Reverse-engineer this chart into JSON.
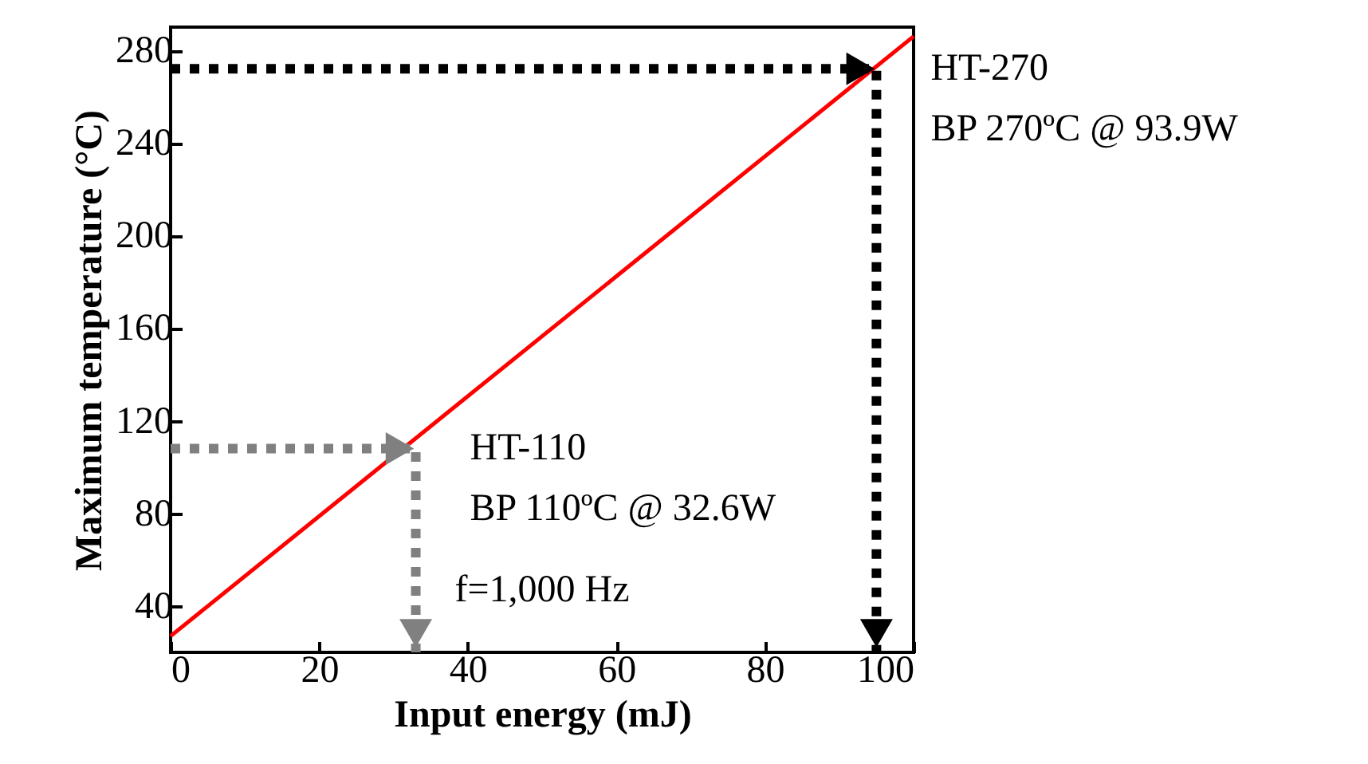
{
  "chart_data": {
    "type": "line",
    "xlabel": "Input energy (mJ)",
    "ylabel": "Maximum temperature (°C)",
    "xlim": [
      0,
      100
    ],
    "xticks": [
      0,
      20,
      40,
      60,
      80,
      100
    ],
    "ylim": [
      20,
      290
    ],
    "yticks": [
      40,
      80,
      120,
      160,
      200,
      240,
      280
    ],
    "grid": false,
    "legend": false,
    "series": [
      {
        "color": "#ff0000",
        "x": [
          0,
          100
        ],
        "values": [
          27,
          286
        ],
        "line_style": "solid"
      },
      {
        "color": "#808080",
        "x": [
          0,
          33,
          33
        ],
        "values": [
          108,
          108,
          20
        ],
        "line_style": "dotted"
      },
      {
        "color": "#000000",
        "x": [
          0,
          95,
          95
        ],
        "values": [
          272,
          272,
          20
        ],
        "line_style": "dotted"
      }
    ],
    "annotations": [
      "HT-110",
      "BP 110ºC @ 32.6W",
      "HT-270",
      "BP 270ºC @ 93.9W",
      "f=1,000 Hz"
    ]
  }
}
